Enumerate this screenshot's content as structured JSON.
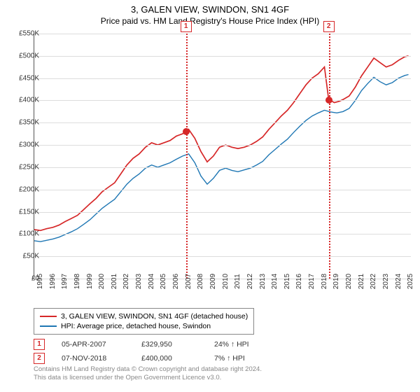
{
  "title": "3, GALEN VIEW, SWINDON, SN1 4GF",
  "subtitle": "Price paid vs. HM Land Registry's House Price Index (HPI)",
  "chart": {
    "type": "line",
    "background_color": "#ffffff",
    "grid_color": "#dddddd",
    "axis_color": "#555555",
    "ylim": [
      0,
      550000
    ],
    "ytick_step": 50000,
    "y_labels": [
      "£0",
      "£50K",
      "£100K",
      "£150K",
      "£200K",
      "£250K",
      "£300K",
      "£350K",
      "£400K",
      "£450K",
      "£500K",
      "£550K"
    ],
    "x_years": [
      1995,
      1996,
      1997,
      1998,
      1999,
      2000,
      2001,
      2002,
      2003,
      2004,
      2005,
      2006,
      2007,
      2008,
      2009,
      2010,
      2011,
      2012,
      2013,
      2014,
      2015,
      2016,
      2017,
      2018,
      2019,
      2020,
      2021,
      2022,
      2023,
      2024,
      2025
    ],
    "xlim": [
      1995,
      2025.5
    ],
    "series": [
      {
        "name": "price_paid",
        "label": "3, GALEN VIEW, SWINDON, SN1 4GF (detached house)",
        "color": "#d62728",
        "width": 1.7,
        "data": [
          [
            1995,
            110000
          ],
          [
            1995.5,
            108000
          ],
          [
            1996,
            112000
          ],
          [
            1996.5,
            115000
          ],
          [
            1997,
            120000
          ],
          [
            1997.5,
            128000
          ],
          [
            1998,
            135000
          ],
          [
            1998.5,
            142000
          ],
          [
            1999,
            155000
          ],
          [
            1999.5,
            168000
          ],
          [
            2000,
            180000
          ],
          [
            2000.5,
            195000
          ],
          [
            2001,
            205000
          ],
          [
            2001.5,
            215000
          ],
          [
            2002,
            235000
          ],
          [
            2002.5,
            255000
          ],
          [
            2003,
            270000
          ],
          [
            2003.5,
            280000
          ],
          [
            2004,
            295000
          ],
          [
            2004.5,
            305000
          ],
          [
            2005,
            300000
          ],
          [
            2005.5,
            305000
          ],
          [
            2006,
            310000
          ],
          [
            2006.5,
            320000
          ],
          [
            2007,
            325000
          ],
          [
            2007.28,
            329950
          ],
          [
            2007.5,
            335000
          ],
          [
            2008,
            315000
          ],
          [
            2008.5,
            285000
          ],
          [
            2009,
            262000
          ],
          [
            2009.5,
            275000
          ],
          [
            2010,
            295000
          ],
          [
            2010.5,
            300000
          ],
          [
            2011,
            295000
          ],
          [
            2011.5,
            292000
          ],
          [
            2012,
            295000
          ],
          [
            2012.5,
            300000
          ],
          [
            2013,
            308000
          ],
          [
            2013.5,
            318000
          ],
          [
            2014,
            335000
          ],
          [
            2014.5,
            350000
          ],
          [
            2015,
            365000
          ],
          [
            2015.5,
            378000
          ],
          [
            2016,
            395000
          ],
          [
            2016.5,
            415000
          ],
          [
            2017,
            435000
          ],
          [
            2017.5,
            450000
          ],
          [
            2018,
            460000
          ],
          [
            2018.5,
            475000
          ],
          [
            2018.85,
            400000
          ],
          [
            2019,
            400000
          ],
          [
            2019.3,
            395000
          ],
          [
            2019.7,
            398000
          ],
          [
            2020,
            402000
          ],
          [
            2020.5,
            410000
          ],
          [
            2021,
            430000
          ],
          [
            2021.5,
            455000
          ],
          [
            2022,
            475000
          ],
          [
            2022.5,
            495000
          ],
          [
            2023,
            485000
          ],
          [
            2023.5,
            475000
          ],
          [
            2024,
            480000
          ],
          [
            2024.5,
            490000
          ],
          [
            2025,
            498000
          ],
          [
            2025.3,
            500000
          ]
        ]
      },
      {
        "name": "hpi",
        "label": "HPI: Average price, detached house, Swindon",
        "color": "#1f77b4",
        "width": 1.4,
        "data": [
          [
            1995,
            85000
          ],
          [
            1995.5,
            83000
          ],
          [
            1996,
            86000
          ],
          [
            1996.5,
            89000
          ],
          [
            1997,
            93000
          ],
          [
            1997.5,
            99000
          ],
          [
            1998,
            105000
          ],
          [
            1998.5,
            112000
          ],
          [
            1999,
            122000
          ],
          [
            1999.5,
            132000
          ],
          [
            2000,
            145000
          ],
          [
            2000.5,
            158000
          ],
          [
            2001,
            168000
          ],
          [
            2001.5,
            178000
          ],
          [
            2002,
            195000
          ],
          [
            2002.5,
            212000
          ],
          [
            2003,
            225000
          ],
          [
            2003.5,
            235000
          ],
          [
            2004,
            248000
          ],
          [
            2004.5,
            255000
          ],
          [
            2005,
            250000
          ],
          [
            2005.5,
            255000
          ],
          [
            2006,
            260000
          ],
          [
            2006.5,
            268000
          ],
          [
            2007,
            275000
          ],
          [
            2007.5,
            280000
          ],
          [
            2008,
            260000
          ],
          [
            2008.5,
            230000
          ],
          [
            2009,
            212000
          ],
          [
            2009.5,
            225000
          ],
          [
            2010,
            243000
          ],
          [
            2010.5,
            248000
          ],
          [
            2011,
            243000
          ],
          [
            2011.5,
            240000
          ],
          [
            2012,
            244000
          ],
          [
            2012.5,
            248000
          ],
          [
            2013,
            255000
          ],
          [
            2013.5,
            263000
          ],
          [
            2014,
            278000
          ],
          [
            2014.5,
            290000
          ],
          [
            2015,
            302000
          ],
          [
            2015.5,
            313000
          ],
          [
            2016,
            328000
          ],
          [
            2016.5,
            342000
          ],
          [
            2017,
            355000
          ],
          [
            2017.5,
            365000
          ],
          [
            2018,
            372000
          ],
          [
            2018.5,
            378000
          ],
          [
            2019,
            374000
          ],
          [
            2019.5,
            372000
          ],
          [
            2020,
            375000
          ],
          [
            2020.5,
            382000
          ],
          [
            2021,
            400000
          ],
          [
            2021.5,
            422000
          ],
          [
            2022,
            438000
          ],
          [
            2022.5,
            452000
          ],
          [
            2023,
            442000
          ],
          [
            2023.5,
            435000
          ],
          [
            2024,
            440000
          ],
          [
            2024.5,
            450000
          ],
          [
            2025,
            456000
          ],
          [
            2025.3,
            458000
          ]
        ]
      }
    ],
    "events": [
      {
        "n": 1,
        "year": 2007.28,
        "price": 329950,
        "color": "#d62728"
      },
      {
        "n": 2,
        "year": 2018.85,
        "price": 400000,
        "color": "#d62728"
      }
    ]
  },
  "legend": {
    "items": [
      {
        "color": "#d62728",
        "label": "3, GALEN VIEW, SWINDON, SN1 4GF (detached house)"
      },
      {
        "color": "#1f77b4",
        "label": "HPI: Average price, detached house, Swindon"
      }
    ]
  },
  "sales": [
    {
      "n": "1",
      "date": "05-APR-2007",
      "price": "£329,950",
      "delta": "24% ↑ HPI",
      "color": "#d62728"
    },
    {
      "n": "2",
      "date": "07-NOV-2018",
      "price": "£400,000",
      "delta": "7% ↑ HPI",
      "color": "#d62728"
    }
  ],
  "footer": {
    "line1": "Contains HM Land Registry data © Crown copyright and database right 2024.",
    "line2": "This data is licensed under the Open Government Licence v3.0."
  }
}
